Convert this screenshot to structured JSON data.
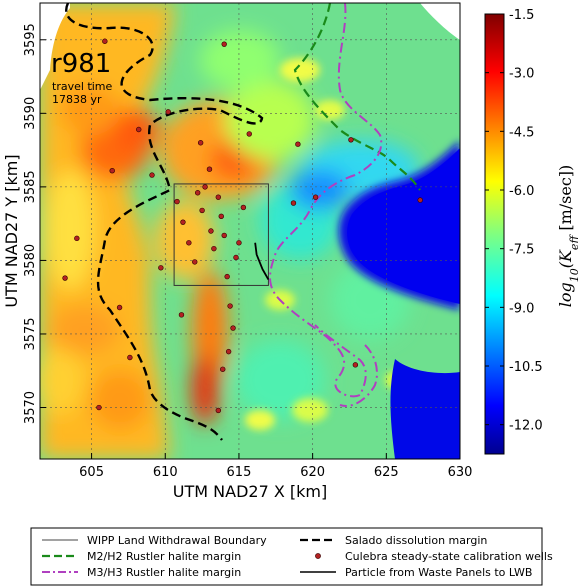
{
  "chart_data": {
    "type": "heatmap",
    "xlabel": "UTM NAD27 X [km]",
    "ylabel": "UTM NAD27 Y [km]",
    "xlim": [
      601.5,
      630
    ],
    "ylim": [
      3566.5,
      3597.5
    ],
    "xticks": [
      "605",
      "610",
      "615",
      "620",
      "625",
      "630"
    ],
    "yticks": [
      "3570",
      "3575",
      "3580",
      "3585",
      "3590",
      "3595"
    ],
    "xtick_values": [
      605,
      610,
      615,
      620,
      625,
      630
    ],
    "ytick_values": [
      3570,
      3575,
      3580,
      3585,
      3590,
      3595
    ],
    "grid": true,
    "annotation": {
      "run": "r981",
      "line1": "travel time",
      "line2": "17838 yr"
    },
    "colorbar": {
      "label": "log10(Keff [m/sec])",
      "label_prefix": "log",
      "label_sub": "10",
      "label_mid": "(K",
      "label_sub2": "eff",
      "label_suffix": " [m/sec])",
      "range": [
        -12.75,
        -1.5
      ],
      "ticks": [
        "-1.5",
        "-3.0",
        "-4.5",
        "-6.0",
        "-7.5",
        "-9.0",
        "-10.5",
        "-12.0"
      ],
      "tick_values": [
        -1.5,
        -3.0,
        -4.5,
        -6.0,
        -7.5,
        -9.0,
        -10.5,
        -12.0
      ],
      "colormap": "jet"
    },
    "legend": {
      "placement": "bottom",
      "entries": [
        {
          "label": "WIPP Land Withdrawal Boundary",
          "style": "thin-solid",
          "color": "#444444"
        },
        {
          "label": "Salado dissolution margin",
          "style": "dashed",
          "color": "#000000"
        },
        {
          "label": "M2/H2 Rustler halite margin",
          "style": "dashed",
          "color": "#1a8a1a"
        },
        {
          "label": "Culebra steady-state calibration wells",
          "style": "marker",
          "color": "#b22222"
        },
        {
          "label": "M3/H3 Rustler halite margin",
          "style": "dashdot",
          "color": "#b040c0"
        },
        {
          "label": "Particle from Waste Panels to LWB",
          "style": "solid",
          "color": "#000000"
        }
      ]
    },
    "regions": {
      "wipp_boundary": {
        "x": [
          610.6,
          617.0
        ],
        "y": [
          3578.3,
          3585.2
        ]
      },
      "low_k_basin_value": -11.8,
      "west_value": -4.2,
      "central_value": -6.2
    },
    "wells": [
      [
        603.2,
        3578.8
      ],
      [
        604.0,
        3581.5
      ],
      [
        605.5,
        3570.0
      ],
      [
        605.9,
        3594.9
      ],
      [
        606.4,
        3586.1
      ],
      [
        606.9,
        3576.8
      ],
      [
        607.6,
        3573.4
      ],
      [
        608.2,
        3588.9
      ],
      [
        609.1,
        3585.8
      ],
      [
        610.2,
        3590.1
      ],
      [
        610.8,
        3584.0
      ],
      [
        611.2,
        3582.6
      ],
      [
        611.6,
        3581.2
      ],
      [
        612.0,
        3579.9
      ],
      [
        612.2,
        3584.6
      ],
      [
        612.5,
        3583.4
      ],
      [
        612.7,
        3585.0
      ],
      [
        613.0,
        3586.2
      ],
      [
        613.1,
        3582.0
      ],
      [
        613.3,
        3580.8
      ],
      [
        613.6,
        3584.3
      ],
      [
        613.8,
        3583.0
      ],
      [
        614.0,
        3581.7
      ],
      [
        614.2,
        3578.9
      ],
      [
        614.4,
        3576.9
      ],
      [
        614.6,
        3575.4
      ],
      [
        614.3,
        3573.8
      ],
      [
        613.9,
        3572.6
      ],
      [
        614.8,
        3580.2
      ],
      [
        615.0,
        3581.2
      ],
      [
        615.3,
        3583.6
      ],
      [
        615.7,
        3588.6
      ],
      [
        614.0,
        3594.7
      ],
      [
        612.4,
        3588.0
      ],
      [
        619.0,
        3587.9
      ],
      [
        618.7,
        3583.9
      ],
      [
        620.2,
        3584.3
      ],
      [
        622.6,
        3588.2
      ],
      [
        622.9,
        3572.9
      ],
      [
        627.3,
        3584.1
      ],
      [
        609.7,
        3579.5
      ],
      [
        613.6,
        3569.8
      ],
      [
        611.1,
        3576.3
      ]
    ],
    "particle_path": [
      [
        616.1,
        3581.2
      ],
      [
        616.2,
        3580.4
      ],
      [
        616.6,
        3579.4
      ],
      [
        617.0,
        3578.7
      ]
    ]
  }
}
